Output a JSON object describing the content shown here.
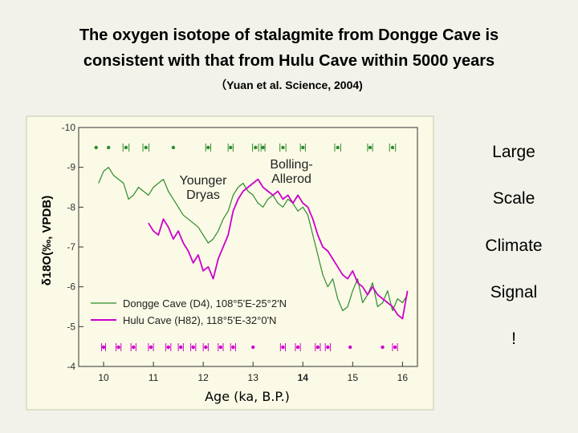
{
  "slide": {
    "title_line1": "The oxygen isotope of stalagmite from Dongge Cave is",
    "title_line2": "consistent with that from Hulu Cave within 5000 years",
    "citation": "（Yuan et al. Science, 2004)",
    "side_words": [
      "Large",
      "Scale",
      "Climate",
      "Signal",
      "!"
    ]
  },
  "chart_data": {
    "type": "line",
    "title": "",
    "xlabel": "Age (ka, B.P.)",
    "ylabel": "δ18O(‰, VPDB)",
    "xlim": [
      9.5,
      16.3
    ],
    "ylim": [
      -10,
      -4
    ],
    "y_reversed": true,
    "xticks": [
      10,
      11,
      12,
      13,
      14,
      15,
      16
    ],
    "yticks": [
      -10,
      -9,
      -8,
      -7,
      -6,
      -5,
      -4
    ],
    "annotations": [
      "Younger\nDryas",
      "Bolling-\nAllerod"
    ],
    "legend": {
      "position": "bottom-left",
      "entries": [
        {
          "name": "Dongge Cave (D4), 108°5'E-25°2'N",
          "color": "#2e8b2e"
        },
        {
          "name": "Hulu Cave (H82), 118°5'E-32°0'N",
          "color": "#cc00cc"
        }
      ]
    },
    "series": [
      {
        "name": "Dongge Cave (D4), 108°5'E-25°2'N",
        "color": "#2e8b2e",
        "x": [
          9.9,
          10.0,
          10.1,
          10.2,
          10.3,
          10.4,
          10.5,
          10.6,
          10.7,
          10.8,
          10.9,
          11.0,
          11.1,
          11.2,
          11.3,
          11.4,
          11.5,
          11.6,
          11.7,
          11.8,
          11.9,
          12.0,
          12.1,
          12.2,
          12.3,
          12.4,
          12.5,
          12.6,
          12.7,
          12.8,
          12.9,
          13.0,
          13.1,
          13.2,
          13.3,
          13.4,
          13.5,
          13.6,
          13.7,
          13.8,
          13.9,
          14.0,
          14.1,
          14.2,
          14.3,
          14.4,
          14.5,
          14.6,
          14.7,
          14.8,
          14.9,
          15.0,
          15.1,
          15.2,
          15.3,
          15.4,
          15.5,
          15.6,
          15.7,
          15.8,
          15.9,
          16.0,
          16.1
        ],
        "y": [
          -8.6,
          -8.9,
          -9.0,
          -8.8,
          -8.7,
          -8.6,
          -8.2,
          -8.3,
          -8.5,
          -8.4,
          -8.3,
          -8.5,
          -8.6,
          -8.7,
          -8.4,
          -8.2,
          -8.0,
          -7.8,
          -7.7,
          -7.6,
          -7.5,
          -7.3,
          -7.1,
          -7.2,
          -7.4,
          -7.7,
          -7.9,
          -8.3,
          -8.5,
          -8.6,
          -8.4,
          -8.3,
          -8.1,
          -8.0,
          -8.2,
          -8.3,
          -8.1,
          -8.0,
          -8.2,
          -8.1,
          -7.9,
          -8.0,
          -7.8,
          -7.3,
          -6.8,
          -6.3,
          -6.0,
          -6.2,
          -5.7,
          -5.4,
          -5.5,
          -5.9,
          -6.2,
          -5.6,
          -5.8,
          -6.1,
          -5.5,
          -5.6,
          -5.9,
          -5.4,
          -5.7,
          -5.6,
          -5.8
        ]
      },
      {
        "name": "Hulu Cave (H82), 118°5'E-32°0'N",
        "color": "#cc00cc",
        "x": [
          10.9,
          11.0,
          11.1,
          11.2,
          11.3,
          11.4,
          11.5,
          11.6,
          11.7,
          11.8,
          11.9,
          12.0,
          12.1,
          12.2,
          12.3,
          12.4,
          12.5,
          12.6,
          12.7,
          12.8,
          12.9,
          13.0,
          13.1,
          13.2,
          13.3,
          13.4,
          13.5,
          13.6,
          13.7,
          13.8,
          13.9,
          14.0,
          14.1,
          14.2,
          14.3,
          14.4,
          14.5,
          14.6,
          14.7,
          14.8,
          14.9,
          15.0,
          15.1,
          15.2,
          15.3,
          15.4,
          15.5,
          15.6,
          15.7,
          15.8,
          15.9,
          16.0,
          16.1
        ],
        "y": [
          -7.6,
          -7.4,
          -7.3,
          -7.7,
          -7.5,
          -7.2,
          -7.4,
          -7.1,
          -6.9,
          -6.6,
          -6.8,
          -6.4,
          -6.5,
          -6.2,
          -6.7,
          -7.0,
          -7.3,
          -7.9,
          -8.2,
          -8.4,
          -8.5,
          -8.6,
          -8.7,
          -8.5,
          -8.4,
          -8.3,
          -8.4,
          -8.2,
          -8.3,
          -8.1,
          -8.3,
          -8.1,
          -8.0,
          -7.7,
          -7.3,
          -7.0,
          -6.9,
          -6.7,
          -6.5,
          -6.3,
          -6.2,
          -6.4,
          -6.1,
          -6.0,
          -5.8,
          -6.0,
          -5.8,
          -5.7,
          -5.6,
          -5.5,
          -5.3,
          -5.2,
          -5.9
        ]
      }
    ],
    "dating_points_top": [
      {
        "x": 9.85,
        "err": 0.0
      },
      {
        "x": 10.1,
        "err": 0.0
      },
      {
        "x": 10.45,
        "err": 0.06
      },
      {
        "x": 10.85,
        "err": 0.06
      },
      {
        "x": 11.4,
        "err": 0.0
      },
      {
        "x": 12.1,
        "err": 0.05
      },
      {
        "x": 12.55,
        "err": 0.05
      },
      {
        "x": 13.05,
        "err": 0.06
      },
      {
        "x": 13.2,
        "err": 0.04
      },
      {
        "x": 13.6,
        "err": 0.06
      },
      {
        "x": 14.0,
        "err": 0.05
      },
      {
        "x": 14.7,
        "err": 0.06
      },
      {
        "x": 15.35,
        "err": 0.05
      },
      {
        "x": 15.8,
        "err": 0.06
      }
    ],
    "dating_points_bottom": [
      {
        "x": 10.0,
        "err": 0.04
      },
      {
        "x": 10.3,
        "err": 0.05
      },
      {
        "x": 10.6,
        "err": 0.05
      },
      {
        "x": 10.95,
        "err": 0.05
      },
      {
        "x": 11.3,
        "err": 0.05
      },
      {
        "x": 11.55,
        "err": 0.05
      },
      {
        "x": 11.8,
        "err": 0.05
      },
      {
        "x": 12.05,
        "err": 0.05
      },
      {
        "x": 12.35,
        "err": 0.05
      },
      {
        "x": 12.6,
        "err": 0.05
      },
      {
        "x": 13.0,
        "err": 0.0
      },
      {
        "x": 13.6,
        "err": 0.05
      },
      {
        "x": 13.9,
        "err": 0.05
      },
      {
        "x": 14.3,
        "err": 0.05
      },
      {
        "x": 14.5,
        "err": 0.05
      },
      {
        "x": 14.95,
        "err": 0.0
      },
      {
        "x": 15.6,
        "err": 0.0
      },
      {
        "x": 15.85,
        "err": 0.05
      }
    ]
  }
}
